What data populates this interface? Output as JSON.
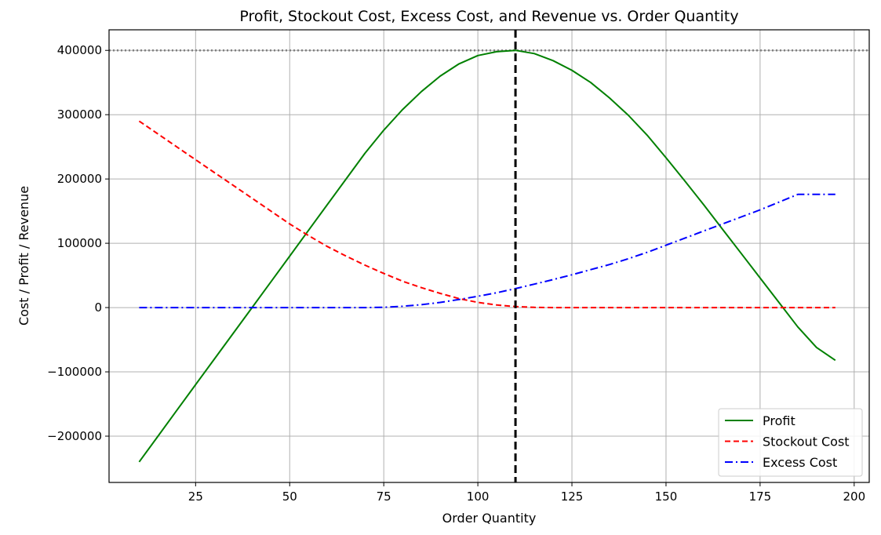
{
  "chart_data": {
    "type": "line",
    "title": "Profit, Stockout Cost, Excess Cost, and Revenue vs. Order Quantity",
    "xlabel": "Order Quantity",
    "ylabel": "Cost / Profit / Revenue",
    "xlim": [
      2,
      204
    ],
    "ylim": [
      -272000,
      432000
    ],
    "x_ticks": [
      25,
      50,
      75,
      100,
      125,
      150,
      175,
      200
    ],
    "y_ticks": [
      -200000,
      -100000,
      0,
      100000,
      200000,
      300000,
      400000
    ],
    "grid": true,
    "legend_position": "lower right",
    "x": [
      10,
      15,
      20,
      25,
      30,
      35,
      40,
      45,
      50,
      55,
      60,
      65,
      70,
      75,
      80,
      85,
      90,
      95,
      100,
      105,
      110,
      115,
      120,
      125,
      130,
      135,
      140,
      145,
      150,
      155,
      160,
      165,
      170,
      175,
      180,
      185,
      190,
      195
    ],
    "series": [
      {
        "name": "Profit",
        "color": "#008000",
        "dash": "solid",
        "values": [
          -240000,
          -200000,
          -160000,
          -120000,
          -80000,
          -40000,
          0,
          40000,
          80000,
          120000,
          160000,
          200000,
          240000,
          276000,
          308000,
          336000,
          360000,
          379000,
          392000,
          398000,
          400000,
          395000,
          384000,
          369000,
          350000,
          326000,
          299000,
          268000,
          233000,
          197000,
          160000,
          122000,
          84000,
          46000,
          8000,
          -30000,
          -62000,
          -82000
        ]
      },
      {
        "name": "Stockout Cost",
        "color": "#ff0000",
        "dash": "dashed",
        "values": [
          290000,
          270000,
          250000,
          230000,
          210000,
          190000,
          170000,
          150000,
          130000,
          112000,
          95000,
          80000,
          66000,
          53000,
          41000,
          31000,
          22000,
          14000,
          8000,
          4000,
          1500,
          300,
          0,
          0,
          0,
          0,
          0,
          0,
          0,
          0,
          0,
          0,
          0,
          0,
          0,
          0,
          0,
          0
        ]
      },
      {
        "name": "Excess Cost",
        "color": "#0000ff",
        "dash": "dashdot",
        "values": [
          0,
          0,
          0,
          0,
          0,
          0,
          0,
          0,
          0,
          0,
          0,
          0,
          0,
          500,
          2000,
          4500,
          8000,
          12500,
          17500,
          23000,
          29500,
          36500,
          43500,
          51000,
          59000,
          67000,
          76000,
          86000,
          97000,
          108000,
          119000,
          130000,
          141000,
          152000,
          164000,
          176000,
          176000,
          176000
        ]
      }
    ],
    "reference_lines": {
      "vertical_x": 110,
      "horizontal_y": 400000
    }
  }
}
